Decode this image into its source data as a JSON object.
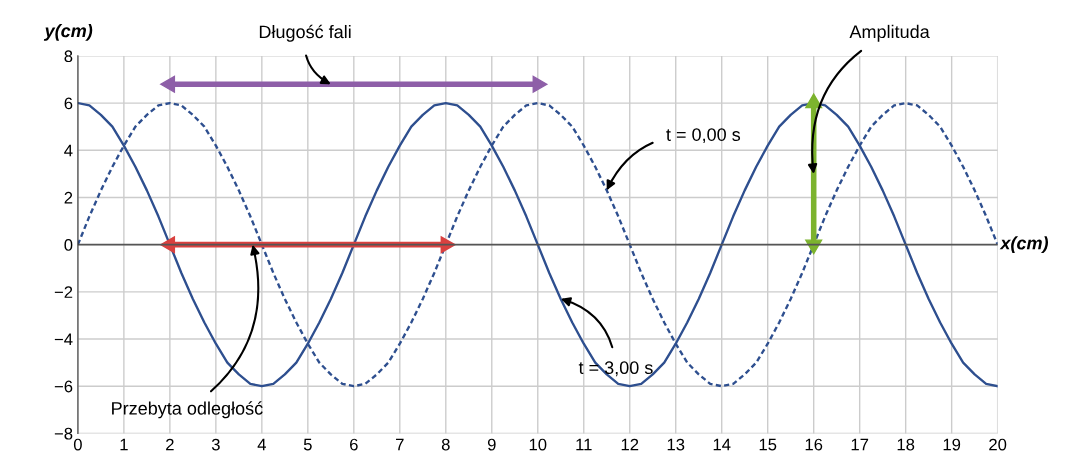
{
  "chart_data": {
    "type": "line",
    "xlabel": "x(cm)",
    "ylabel": "y(cm)",
    "x": [
      0,
      0.25,
      0.5,
      0.75,
      1,
      1.25,
      1.5,
      1.75,
      2,
      2.25,
      2.5,
      2.75,
      3,
      3.25,
      3.5,
      3.75,
      4,
      4.25,
      4.5,
      4.75,
      5,
      5.25,
      5.5,
      5.75,
      6,
      6.25,
      6.5,
      6.75,
      7,
      7.25,
      7.5,
      7.75,
      8,
      8.25,
      8.5,
      8.75,
      9,
      9.25,
      9.5,
      9.75,
      10,
      10.25,
      10.5,
      10.75,
      11,
      11.25,
      11.5,
      11.75,
      12,
      12.25,
      12.5,
      12.75,
      13,
      13.25,
      13.5,
      13.75,
      14,
      14.25,
      14.5,
      14.75,
      15,
      15.25,
      15.5,
      15.75,
      16,
      16.25,
      16.5,
      16.75,
      17,
      17.25,
      17.5,
      17.75,
      18,
      18.25,
      18.5,
      18.75,
      19,
      19.25,
      19.5,
      19.75,
      20
    ],
    "series": [
      {
        "color": "#2e4f8f",
        "line_style": "dashed",
        "values": [
          0,
          1.2,
          2.3,
          3.3,
          4.2,
          5.0,
          5.5,
          5.9,
          6,
          5.9,
          5.5,
          5.0,
          4.2,
          3.3,
          2.3,
          1.2,
          0,
          -1.2,
          -2.3,
          -3.3,
          -4.2,
          -5.0,
          -5.5,
          -5.9,
          -6,
          -5.9,
          -5.5,
          -5.0,
          -4.2,
          -3.3,
          -2.3,
          -1.2,
          0,
          1.2,
          2.3,
          3.3,
          4.2,
          5.0,
          5.5,
          5.9,
          6,
          5.9,
          5.5,
          5.0,
          4.2,
          3.3,
          2.3,
          1.2,
          0,
          -1.2,
          -2.3,
          -3.3,
          -4.2,
          -5.0,
          -5.5,
          -5.9,
          -6,
          -5.9,
          -5.5,
          -5.0,
          -4.2,
          -3.3,
          -2.3,
          -1.2,
          0,
          1.2,
          2.3,
          3.3,
          4.2,
          5.0,
          5.5,
          5.9,
          6,
          5.9,
          5.5,
          5.0,
          4.2,
          3.3,
          2.3,
          1.2,
          0
        ]
      },
      {
        "color": "#2e4f8f",
        "line_style": "solid",
        "values": [
          6,
          5.9,
          5.5,
          5.0,
          4.2,
          3.3,
          2.3,
          1.2,
          0,
          -1.2,
          -2.3,
          -3.3,
          -4.2,
          -5.0,
          -5.5,
          -5.9,
          -6,
          -5.9,
          -5.5,
          -5.0,
          -4.2,
          -3.3,
          -2.3,
          -1.2,
          0,
          1.2,
          2.3,
          3.3,
          4.2,
          5.0,
          5.5,
          5.9,
          6,
          5.9,
          5.5,
          5.0,
          4.2,
          3.3,
          2.3,
          1.2,
          0,
          -1.2,
          -2.3,
          -3.3,
          -4.2,
          -5.0,
          -5.5,
          -5.9,
          -6,
          -5.9,
          -5.5,
          -5.0,
          -4.2,
          -3.3,
          -2.3,
          -1.2,
          0,
          1.2,
          2.3,
          3.3,
          4.2,
          5.0,
          5.5,
          5.9,
          6,
          5.9,
          5.5,
          5.0,
          4.2,
          3.3,
          2.3,
          1.2,
          0,
          -1.2,
          -2.3,
          -3.3,
          -4.2,
          -5.0,
          -5.5,
          -5.9,
          -6
        ]
      },
      {
        "type": "line",
        "marker": "triangle",
        "color": "#8e5fa8",
        "x": [
          2,
          10
        ],
        "values": [
          6.8,
          6.8
        ]
      },
      {
        "type": "line",
        "marker": "triangle",
        "color": "#d9413f",
        "x": [
          2,
          8
        ],
        "values": [
          0,
          0
        ]
      },
      {
        "type": "line",
        "marker": "triangle",
        "color": "#7cb32e",
        "x": [
          16,
          16
        ],
        "values": [
          0,
          6
        ]
      }
    ],
    "annotations": [
      {
        "text": "Długość fali",
        "x": 5.5,
        "y": 6.8
      },
      {
        "text": "t = 0,00 s",
        "x": 11.5,
        "y": 2.3
      },
      {
        "text": "t = 3,00 s",
        "x": 10.5,
        "y": -2.3
      },
      {
        "text": "Amplituda",
        "x": 16,
        "y": 3
      },
      {
        "text": "Przebyta odległość",
        "x": 3.8,
        "y": 0
      }
    ],
    "ref_lines": [
      {
        "axis": "y",
        "value": 0,
        "color": "#555555"
      }
    ],
    "xlim": [
      0,
      20
    ],
    "ylim": [
      -8,
      8
    ],
    "xticks": [
      0,
      1,
      2,
      3,
      4,
      5,
      6,
      7,
      8,
      9,
      10,
      11,
      12,
      13,
      14,
      15,
      16,
      17,
      18,
      19,
      20
    ],
    "yticks": [
      -8,
      -6,
      -4,
      -2,
      0,
      2,
      4,
      6,
      8
    ],
    "grid": true,
    "marker": "none"
  }
}
